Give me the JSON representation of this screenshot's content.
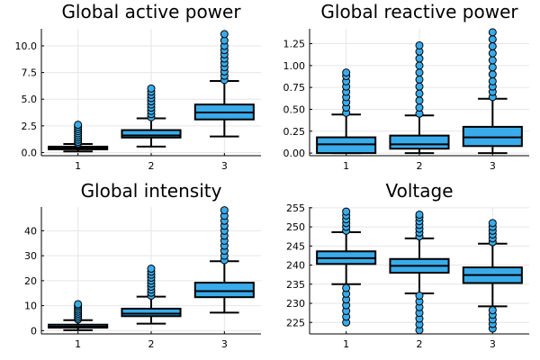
{
  "chart_data": [
    {
      "type": "box",
      "title": "Global active power",
      "categories": [
        "1",
        "2",
        "3"
      ],
      "ylim": [
        -0.3,
        11.6
      ],
      "yticks": [
        0,
        2.5,
        5,
        7.5,
        10
      ],
      "ytick_labels": [
        "0.0",
        "2.5",
        "5.0",
        "7.5",
        "10.0"
      ],
      "boxes": [
        {
          "whisker_low": 0.1,
          "q1": 0.3,
          "median": 0.4,
          "q3": 0.55,
          "whisker_high": 0.8,
          "outliers": [
            0.85,
            1.0,
            1.2,
            1.4,
            1.6,
            1.8,
            2.0,
            2.2,
            2.4,
            2.6
          ]
        },
        {
          "whisker_low": 0.55,
          "q1": 1.4,
          "median": 1.6,
          "q3": 2.1,
          "whisker_high": 3.2,
          "outliers": [
            3.3,
            3.6,
            3.9,
            4.2,
            4.5,
            4.8,
            5.1,
            5.4,
            5.7,
            6.0
          ]
        },
        {
          "whisker_low": 1.5,
          "q1": 3.1,
          "median": 3.75,
          "q3": 4.5,
          "whisker_high": 6.7,
          "outliers": [
            6.8,
            7.2,
            7.6,
            8.0,
            8.4,
            8.8,
            9.2,
            9.6,
            10.0,
            10.5,
            11.1
          ]
        }
      ],
      "color": "#3aabea",
      "grid": true
    },
    {
      "type": "box",
      "title": "Global reactive power",
      "categories": [
        "1",
        "2",
        "3"
      ],
      "ylim": [
        -0.03,
        1.42
      ],
      "yticks": [
        0,
        0.25,
        0.5,
        0.75,
        1.0,
        1.25
      ],
      "ytick_labels": [
        "0.00",
        "0.25",
        "0.50",
        "0.75",
        "1.00",
        "1.25"
      ],
      "boxes": [
        {
          "whisker_low": 0.0,
          "q1": 0.0,
          "median": 0.1,
          "q3": 0.18,
          "whisker_high": 0.44,
          "outliers": [
            0.46,
            0.52,
            0.58,
            0.64,
            0.7,
            0.76,
            0.82,
            0.88,
            0.92
          ]
        },
        {
          "whisker_low": 0.0,
          "q1": 0.05,
          "median": 0.1,
          "q3": 0.2,
          "whisker_high": 0.43,
          "outliers": [
            0.45,
            0.52,
            0.6,
            0.68,
            0.76,
            0.84,
            0.92,
            1.0,
            1.08,
            1.16,
            1.23
          ]
        },
        {
          "whisker_low": 0.0,
          "q1": 0.08,
          "median": 0.18,
          "q3": 0.3,
          "whisker_high": 0.62,
          "outliers": [
            0.64,
            0.7,
            0.76,
            0.82,
            0.9,
            0.98,
            1.06,
            1.14,
            1.22,
            1.3,
            1.38
          ]
        }
      ],
      "color": "#3aabea",
      "grid": true
    },
    {
      "type": "box",
      "title": "Global intensity",
      "categories": [
        "1",
        "2",
        "3"
      ],
      "ylim": [
        -1.3,
        49.5
      ],
      "yticks": [
        0,
        10,
        20,
        30,
        40
      ],
      "ytick_labels": [
        "0",
        "10",
        "20",
        "30",
        "40"
      ],
      "boxes": [
        {
          "whisker_low": 0.2,
          "q1": 1.2,
          "median": 1.6,
          "q3": 2.4,
          "whisker_high": 4.2,
          "outliers": [
            4.5,
            5.2,
            6.0,
            6.8,
            7.6,
            8.4,
            9.2,
            10.0,
            10.6
          ]
        },
        {
          "whisker_low": 2.8,
          "q1": 5.8,
          "median": 6.8,
          "q3": 8.8,
          "whisker_high": 13.6,
          "outliers": [
            14.0,
            15.2,
            16.4,
            17.6,
            18.8,
            20.0,
            21.2,
            22.4,
            23.6,
            24.8
          ]
        },
        {
          "whisker_low": 7.2,
          "q1": 13.4,
          "median": 15.8,
          "q3": 19.2,
          "whisker_high": 27.8,
          "outliers": [
            28.2,
            30.0,
            32.0,
            34.0,
            36.0,
            38.0,
            40.0,
            42.0,
            44.0,
            46.0,
            48.2
          ]
        }
      ],
      "color": "#3aabea",
      "grid": true
    },
    {
      "type": "box",
      "title": "Voltage",
      "categories": [
        "1",
        "2",
        "3"
      ],
      "ylim": [
        222.0,
        255.2
      ],
      "yticks": [
        225,
        230,
        235,
        240,
        245,
        250,
        255
      ],
      "ytick_labels": [
        "225",
        "230",
        "235",
        "240",
        "245",
        "250",
        "255"
      ],
      "boxes": [
        {
          "whisker_low": 235.0,
          "q1": 240.3,
          "median": 241.8,
          "q3": 243.6,
          "whisker_high": 248.6,
          "outliers": [
            225.0,
            226.5,
            228.0,
            229.5,
            231.0,
            232.5,
            234.0,
            249.0,
            250.0,
            251.0,
            252.0,
            253.0,
            254.0
          ]
        },
        {
          "whisker_low": 232.6,
          "q1": 238.0,
          "median": 239.8,
          "q3": 241.6,
          "whisker_high": 247.0,
          "outliers": [
            223.0,
            224.5,
            226.0,
            227.5,
            229.0,
            230.5,
            232.0,
            247.5,
            248.5,
            249.5,
            250.5,
            251.5,
            252.5,
            253.2
          ]
        },
        {
          "whisker_low": 229.2,
          "q1": 235.3,
          "median": 237.4,
          "q3": 239.4,
          "whisker_high": 245.6,
          "outliers": [
            223.4,
            224.6,
            225.8,
            227.0,
            228.2,
            246.0,
            247.0,
            248.0,
            249.0,
            250.0,
            251.0
          ]
        }
      ],
      "color": "#3aabea",
      "grid": true
    }
  ]
}
